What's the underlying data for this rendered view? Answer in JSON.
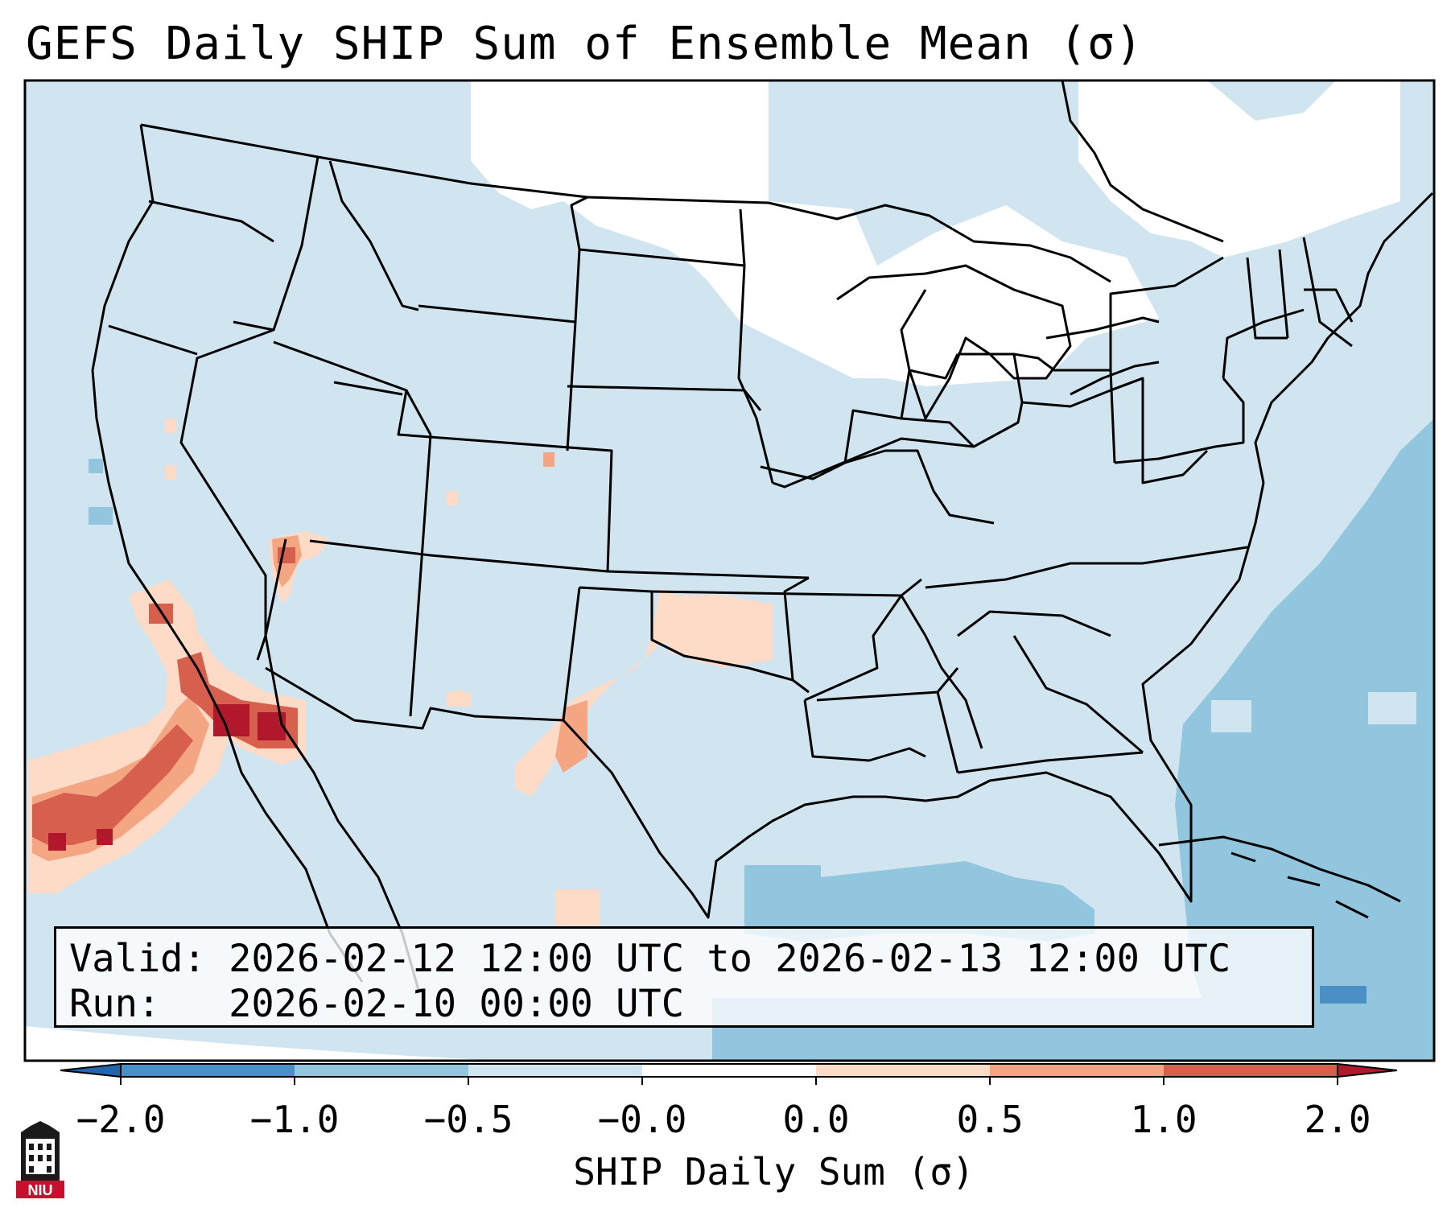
{
  "title": "GEFS Daily SHIP Sum of Ensemble Mean (σ)",
  "info": {
    "valid_label": "Valid:",
    "valid_value": "2026-02-12 12:00 UTC to 2026-02-13 12:00 UTC",
    "run_label": "Run:",
    "run_value": "2026-02-10 00:00 UTC"
  },
  "colorbar": {
    "label": "SHIP Daily Sum (σ)",
    "ticks": [
      "−2.0",
      "−1.0",
      "−0.5",
      "−0.0",
      "0.0",
      "0.5",
      "1.0",
      "2.0"
    ],
    "colors": [
      "#4a8fc6",
      "#92c5de",
      "#d1e5f0",
      "#ffffff",
      "#fddbc7",
      "#f4a582",
      "#d6604d",
      "#b2182b"
    ],
    "extend": "both"
  },
  "map": {
    "region": "CONUS",
    "field_colors": {
      "background_light": "#d1e5f0",
      "background_medium": "#92c5de",
      "positive_light": "#fddbc7",
      "positive_medium": "#f4a582",
      "positive_strong": "#d6604d",
      "positive_max": "#b2182b"
    }
  },
  "logo": {
    "text": "NIU",
    "color": "#c8102e"
  }
}
